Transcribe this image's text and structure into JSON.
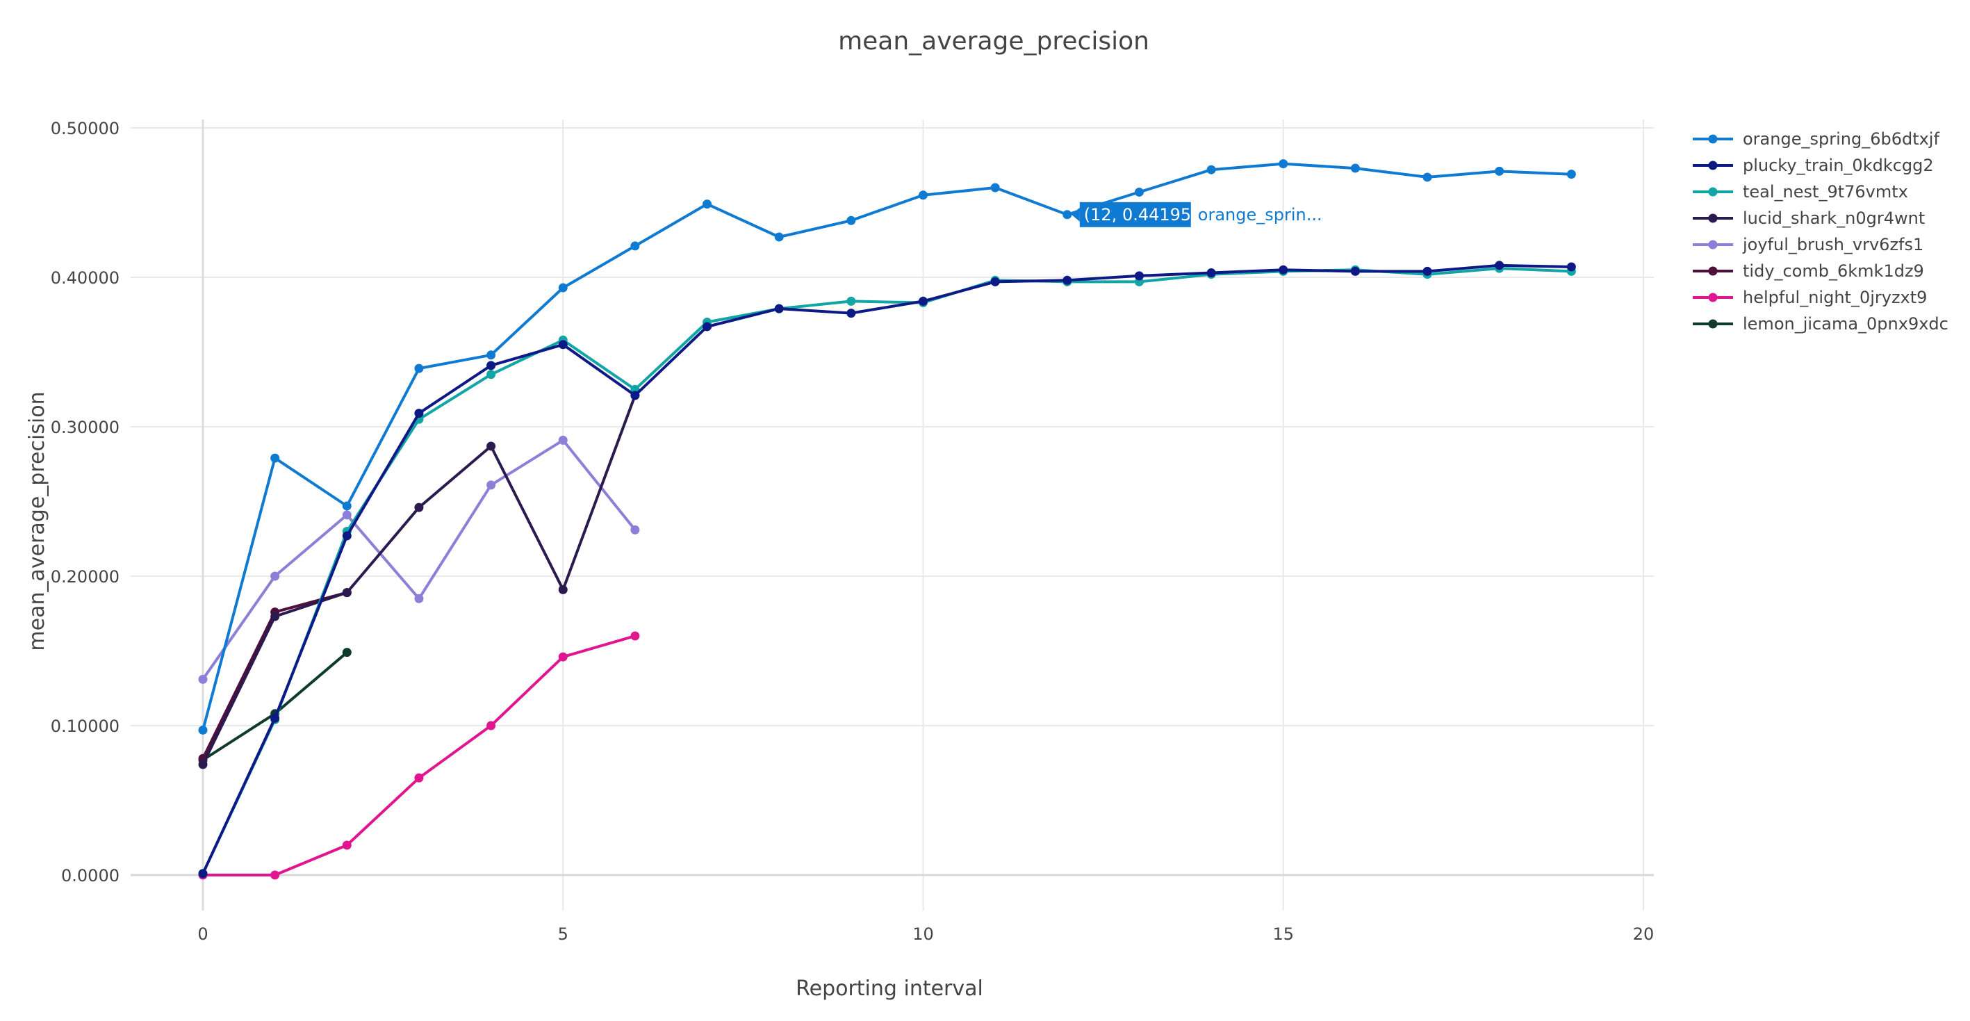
{
  "chart_data": {
    "type": "line",
    "title": "mean_average_precision",
    "xlabel": "Reporting interval",
    "ylabel": "mean_average_precision",
    "xlim": [
      -1,
      20
    ],
    "ylim": [
      -0.02,
      0.5
    ],
    "x_ticks": [
      0,
      5,
      10,
      15,
      20
    ],
    "y_ticks": [
      0,
      0.1,
      0.2,
      0.3,
      0.4,
      0.5
    ],
    "y_tick_labels": [
      "0.0000",
      "0.10000",
      "0.20000",
      "0.30000",
      "0.40000",
      "0.50000"
    ],
    "grid": true,
    "legend_position": "top-right",
    "series": [
      {
        "name": "orange_spring_6b6dtxjf",
        "color": "#0e7ad1",
        "x": [
          0,
          1,
          2,
          3,
          4,
          5,
          6,
          7,
          8,
          9,
          10,
          11,
          12,
          13,
          14,
          15,
          16,
          17,
          18,
          19
        ],
        "values": [
          0.097,
          0.279,
          0.247,
          0.339,
          0.348,
          0.393,
          0.421,
          0.449,
          0.427,
          0.438,
          0.455,
          0.46,
          0.44195,
          0.457,
          0.472,
          0.476,
          0.473,
          0.467,
          0.471,
          0.469
        ]
      },
      {
        "name": "plucky_train_0kdkcgg2",
        "color": "#0d1a85",
        "x": [
          0,
          1,
          2,
          3,
          4,
          5,
          6,
          7,
          8,
          9,
          10,
          11,
          12,
          13,
          14,
          15,
          16,
          17,
          18,
          19
        ],
        "values": [
          0.001,
          0.105,
          0.227,
          0.309,
          0.341,
          0.355,
          0.321,
          0.367,
          0.379,
          0.376,
          0.384,
          0.397,
          0.398,
          0.401,
          0.403,
          0.405,
          0.404,
          0.404,
          0.408,
          0.407
        ]
      },
      {
        "name": "teal_nest_9t76vmtx",
        "color": "#12a5a5",
        "x": [
          0,
          1,
          2,
          3,
          4,
          5,
          6,
          7,
          8,
          9,
          10,
          11,
          12,
          13,
          14,
          15,
          16,
          17,
          18,
          19
        ],
        "values": [
          0.001,
          0.104,
          0.23,
          0.305,
          0.335,
          0.358,
          0.325,
          0.37,
          0.379,
          0.384,
          0.383,
          0.398,
          0.397,
          0.397,
          0.402,
          0.404,
          0.405,
          0.402,
          0.406,
          0.404
        ]
      },
      {
        "name": "lucid_shark_n0gr4wnt",
        "color": "#2a1a4e",
        "x": [
          0,
          1,
          2,
          3,
          4,
          5,
          6
        ],
        "values": [
          0.074,
          0.173,
          0.189,
          0.246,
          0.287,
          0.191,
          0.321
        ]
      },
      {
        "name": "joyful_brush_vrv6zfs1",
        "color": "#8c7fd8",
        "x": [
          0,
          1,
          2,
          3,
          4,
          5,
          6
        ],
        "values": [
          0.131,
          0.2,
          0.241,
          0.185,
          0.261,
          0.291,
          0.231
        ]
      },
      {
        "name": "tidy_comb_6kmk1dz9",
        "color": "#4e0f3c",
        "x": [
          0,
          1,
          2
        ],
        "values": [
          0.078,
          0.176,
          0.189
        ]
      },
      {
        "name": "helpful_night_0jryzxt9",
        "color": "#e0158f",
        "x": [
          0,
          1,
          2,
          3,
          4,
          5,
          6
        ],
        "values": [
          0.0,
          0.0,
          0.02,
          0.065,
          0.1,
          0.146,
          0.16
        ]
      },
      {
        "name": "lemon_jicama_0pnx9xdc",
        "color": "#0f3b2e",
        "x": [
          0,
          1,
          2
        ],
        "values": [
          0.077,
          0.108,
          0.149
        ]
      }
    ],
    "tooltip": {
      "text": "(12, 0.44195)",
      "series_label": "orange_sprin...",
      "x": 12,
      "y": 0.44195,
      "color": "#0e7ad1"
    }
  }
}
